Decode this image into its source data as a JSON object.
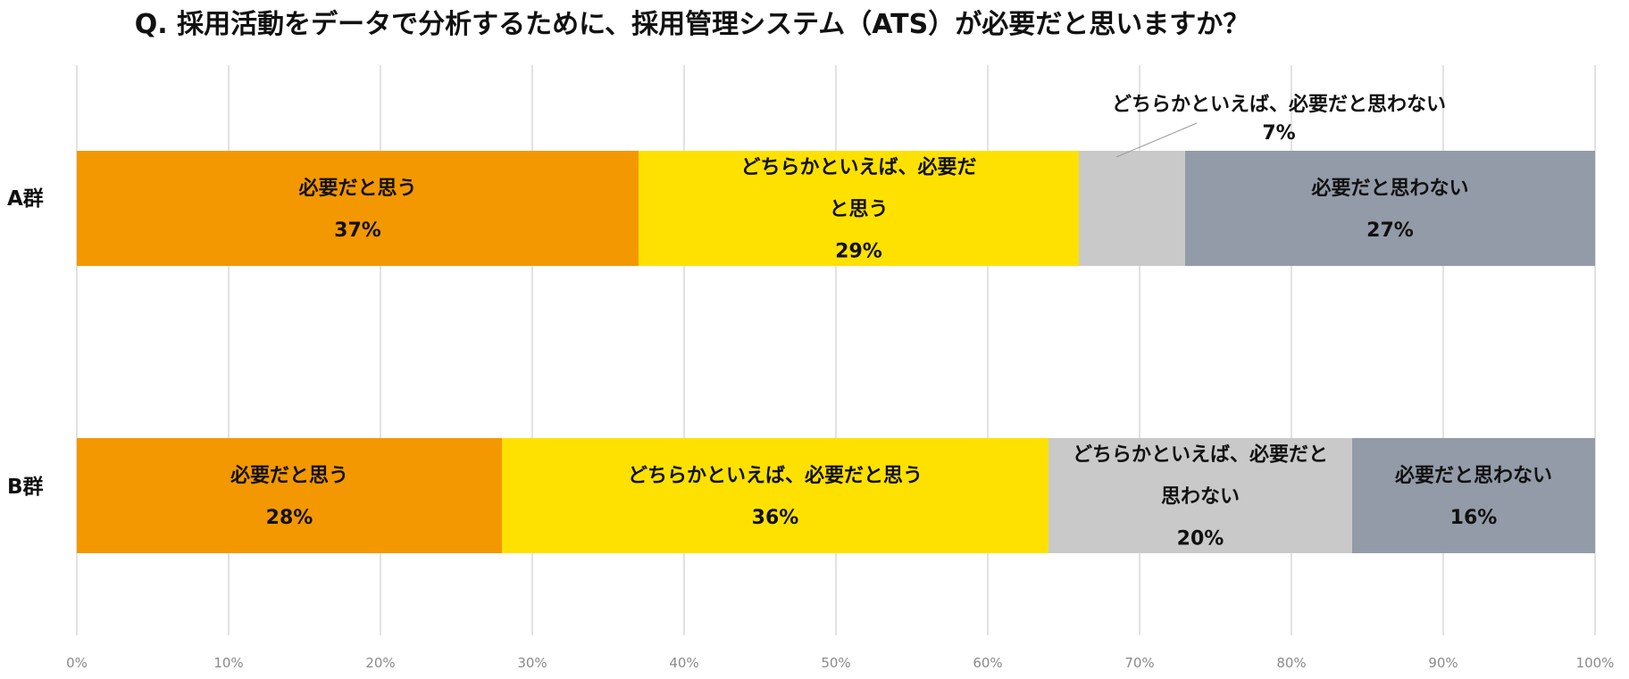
{
  "title": "Q. 採用活動をデータで分析するために、採用管理システム（ATS）が必要だと思いますか？",
  "colors": {
    "必要だと思う": "#f39800",
    "どちらかといえば、必要だと思う": "#ffe100",
    "どちらかといえば、必要だと思わない": "#c9c9c9",
    "必要だと思わない": "#929ba7"
  },
  "chart_data": {
    "type": "bar",
    "orientation": "horizontal",
    "stacked": true,
    "percent": true,
    "categories": [
      "A群",
      "B群"
    ],
    "series": [
      {
        "name": "必要だと思う",
        "values": [
          37,
          28
        ],
        "labels": [
          [
            "必要だと思う",
            "37%"
          ],
          [
            "必要だと思う",
            "28%"
          ]
        ]
      },
      {
        "name": "どちらかといえば、必要だと思う",
        "values": [
          29,
          36
        ],
        "labels": [
          [
            "どちらかといえば、必要だ",
            "と思う",
            "29%"
          ],
          [
            "どちらかといえば、必要だと思う",
            "36%"
          ]
        ]
      },
      {
        "name": "どちらかといえば、必要だと思わない",
        "values": [
          7,
          20
        ],
        "labels": [
          [
            "どちらかといえば、必要だと思わない",
            "7%"
          ],
          [
            "どちらかといえば、必要だと",
            "思わない",
            "20%"
          ]
        ]
      },
      {
        "name": "必要だと思わない",
        "values": [
          27,
          16
        ],
        "labels": [
          [
            "必要だと思わない",
            "27%"
          ],
          [
            "必要だと思わない",
            "16%"
          ]
        ]
      }
    ],
    "xlim": [
      0,
      100
    ],
    "xticks": [
      "0%",
      "10%",
      "20%",
      "30%",
      "40%",
      "50%",
      "60%",
      "70%",
      "80%",
      "90%",
      "100%"
    ],
    "grid": true,
    "legend": "none"
  }
}
